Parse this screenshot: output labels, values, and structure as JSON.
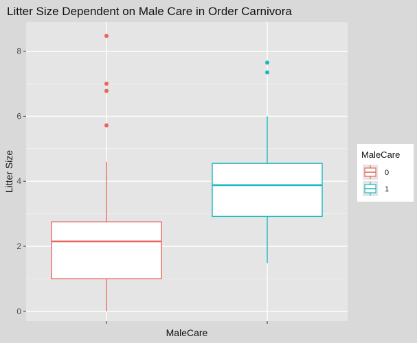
{
  "chart_data": {
    "type": "box",
    "title": "Litter Size Dependent on Male Care in Order Carnivora",
    "xlabel": "MaleCare",
    "ylabel": "Litter Size",
    "ylim": [
      -0.3,
      8.9
    ],
    "y_ticks": [
      0,
      2,
      4,
      6,
      8
    ],
    "grid": true,
    "legend": {
      "title": "MaleCare",
      "placement": "right",
      "entries": [
        "0",
        "1"
      ]
    },
    "groups": [
      {
        "name": "0",
        "color": "#e8665f",
        "whisker_low": 0.0,
        "q1": 1.0,
        "median": 2.15,
        "q3": 2.75,
        "whisker_high": 4.6,
        "outliers": [
          5.72,
          6.78,
          7.0,
          8.47
        ]
      },
      {
        "name": "1",
        "color": "#1ab8c0",
        "whisker_low": 1.48,
        "q1": 2.92,
        "median": 3.88,
        "q3": 4.55,
        "whisker_high": 6.0,
        "outliers": [
          7.35,
          7.65
        ]
      }
    ]
  },
  "colors": {
    "panel_background": "#e5e5e5",
    "outer_background": "#d9d9d9",
    "grid_major": "#ffffff",
    "axis_text": "#4d4d4d"
  }
}
